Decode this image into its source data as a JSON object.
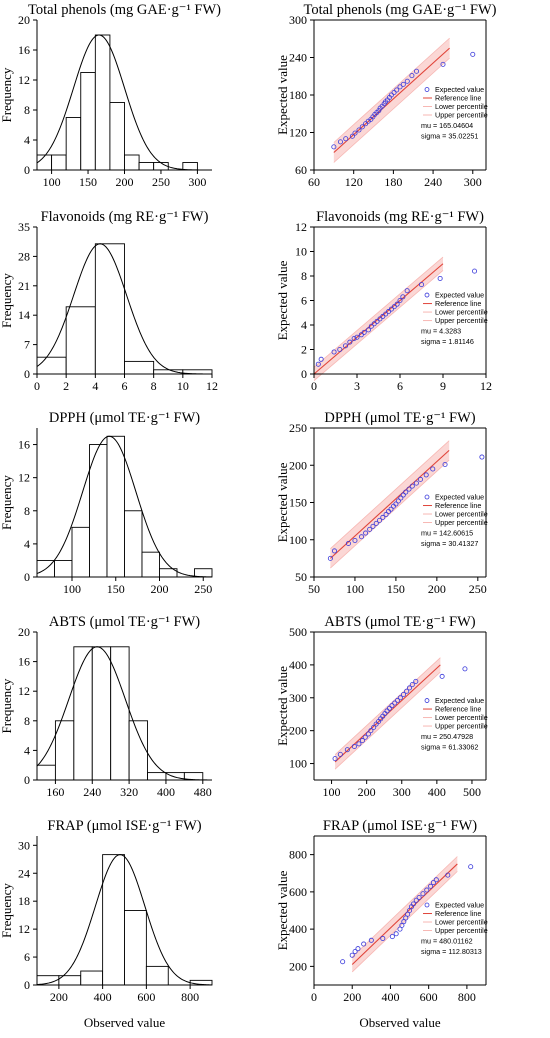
{
  "figure": {
    "hist_ylabel": "Frequency",
    "qq_ylabel": "Expected value",
    "bottom_xlabel": "Observed value",
    "colors": {
      "points": "#3a3adb",
      "reference": "#e0443a",
      "band": "#f7b7b3",
      "axes": "#000000"
    },
    "legend_labels": [
      "Expected value",
      "Reference line",
      "Lower percentile",
      "Upper percentile"
    ]
  },
  "chart_data": [
    {
      "type": "bar",
      "role": "histogram",
      "title": "Total phenols (mg GAE·g⁻¹ FW)",
      "ylabel": "Frequency",
      "xlim": [
        80,
        320
      ],
      "ylim": [
        0,
        20
      ],
      "xticks": [
        100,
        150,
        200,
        250,
        300
      ],
      "yticks": [
        0,
        4,
        8,
        12,
        16,
        20
      ],
      "bin_width": 20,
      "bins": [
        {
          "x0": 80,
          "count": 2
        },
        {
          "x0": 100,
          "count": 2
        },
        {
          "x0": 120,
          "count": 7
        },
        {
          "x0": 140,
          "count": 13
        },
        {
          "x0": 160,
          "count": 18
        },
        {
          "x0": 180,
          "count": 9
        },
        {
          "x0": 200,
          "count": 2
        },
        {
          "x0": 220,
          "count": 1
        },
        {
          "x0": 240,
          "count": 1
        },
        {
          "x0": 260,
          "count": 0
        },
        {
          "x0": 280,
          "count": 1
        }
      ],
      "normal_curve": {
        "mu": 165.04604,
        "sigma": 35.02251,
        "peak": 18
      }
    },
    {
      "type": "scatter",
      "role": "qq",
      "title": "Total phenols (mg GAE·g⁻¹ FW)",
      "ylabel": "Expected value",
      "xlim": [
        60,
        320
      ],
      "ylim": [
        60,
        300
      ],
      "xticks": [
        60,
        120,
        180,
        240,
        300
      ],
      "yticks": [
        60,
        120,
        180,
        240,
        300
      ],
      "reference_line": [
        [
          90,
          88
        ],
        [
          265,
          255
        ]
      ],
      "band_halfwidth": 16,
      "points": [
        [
          90,
          97
        ],
        [
          100,
          105
        ],
        [
          108,
          110
        ],
        [
          118,
          114
        ],
        [
          122,
          119
        ],
        [
          128,
          124
        ],
        [
          133,
          129
        ],
        [
          138,
          134
        ],
        [
          142,
          138
        ],
        [
          146,
          141
        ],
        [
          149,
          145
        ],
        [
          152,
          149
        ],
        [
          155,
          152
        ],
        [
          158,
          155
        ],
        [
          160,
          159
        ],
        [
          163,
          162
        ],
        [
          166,
          166
        ],
        [
          168,
          169
        ],
        [
          171,
          172
        ],
        [
          174,
          176
        ],
        [
          177,
          180
        ],
        [
          181,
          184
        ],
        [
          185,
          188
        ],
        [
          190,
          193
        ],
        [
          195,
          197
        ],
        [
          201,
          202
        ],
        [
          208,
          211
        ],
        [
          215,
          218
        ],
        [
          255,
          229
        ],
        [
          300,
          245
        ]
      ],
      "stats": {
        "mu": "mu = 165.04604",
        "sigma": "sigma = 35.02251"
      }
    },
    {
      "type": "bar",
      "role": "histogram",
      "title": "Flavonoids (mg RE·g⁻¹ FW)",
      "ylabel": "Frequency",
      "xlim": [
        0,
        12
      ],
      "ylim": [
        0,
        35
      ],
      "xticks": [
        0,
        2,
        4,
        6,
        8,
        10,
        12
      ],
      "yticks": [
        0,
        7,
        14,
        21,
        28,
        35
      ],
      "bin_width": 2,
      "bins": [
        {
          "x0": 0,
          "count": 4
        },
        {
          "x0": 2,
          "count": 16
        },
        {
          "x0": 4,
          "count": 31
        },
        {
          "x0": 6,
          "count": 3
        },
        {
          "x0": 8,
          "count": 1
        },
        {
          "x0": 10,
          "count": 1
        }
      ],
      "normal_curve": {
        "mu": 4.3283,
        "sigma": 1.81146,
        "peak": 31
      }
    },
    {
      "type": "scatter",
      "role": "qq",
      "title": "Flavonoids (mg RE·g⁻¹ FW)",
      "ylabel": "Expected value",
      "xlim": [
        0,
        12
      ],
      "ylim": [
        0,
        12
      ],
      "xticks": [
        0,
        3,
        6,
        9,
        12
      ],
      "yticks": [
        0,
        2,
        4,
        6,
        8,
        10,
        12
      ],
      "reference_line": [
        [
          0,
          0
        ],
        [
          9,
          9
        ]
      ],
      "band_halfwidth": 0.55,
      "points": [
        [
          0.3,
          0.8
        ],
        [
          0.5,
          1.2
        ],
        [
          1.4,
          1.8
        ],
        [
          1.8,
          2.0
        ],
        [
          2.2,
          2.3
        ],
        [
          2.5,
          2.6
        ],
        [
          2.8,
          2.9
        ],
        [
          3.0,
          3.0
        ],
        [
          3.3,
          3.2
        ],
        [
          3.5,
          3.4
        ],
        [
          3.8,
          3.6
        ],
        [
          4.0,
          3.9
        ],
        [
          4.2,
          4.1
        ],
        [
          4.4,
          4.3
        ],
        [
          4.6,
          4.5
        ],
        [
          4.8,
          4.7
        ],
        [
          5.0,
          4.9
        ],
        [
          5.2,
          5.1
        ],
        [
          5.4,
          5.3
        ],
        [
          5.6,
          5.5
        ],
        [
          5.8,
          5.7
        ],
        [
          6.0,
          6.0
        ],
        [
          6.2,
          6.3
        ],
        [
          6.5,
          6.8
        ],
        [
          7.5,
          7.3
        ],
        [
          8.8,
          7.8
        ],
        [
          11.2,
          8.4
        ]
      ],
      "stats": {
        "mu": "mu = 4.3283",
        "sigma": "sigma = 1.81146"
      }
    },
    {
      "type": "bar",
      "role": "histogram",
      "title": "DPPH (μmol TE·g⁻¹ FW)",
      "ylabel": "Frequency",
      "xlim": [
        60,
        260
      ],
      "ylim": [
        0,
        18
      ],
      "xticks": [
        100,
        150,
        200,
        250
      ],
      "yticks": [
        0,
        4,
        8,
        12,
        16
      ],
      "bin_width": 20,
      "bins": [
        {
          "x0": 60,
          "count": 2
        },
        {
          "x0": 80,
          "count": 2
        },
        {
          "x0": 100,
          "count": 6
        },
        {
          "x0": 120,
          "count": 16
        },
        {
          "x0": 140,
          "count": 17
        },
        {
          "x0": 160,
          "count": 8
        },
        {
          "x0": 180,
          "count": 3
        },
        {
          "x0": 200,
          "count": 1
        },
        {
          "x0": 220,
          "count": 0
        },
        {
          "x0": 240,
          "count": 1
        }
      ],
      "normal_curve": {
        "mu": 142.60615,
        "sigma": 30.41327,
        "peak": 17
      }
    },
    {
      "type": "scatter",
      "role": "qq",
      "title": "DPPH (μmol TE·g⁻¹ FW)",
      "ylabel": "Expected value",
      "xlim": [
        50,
        260
      ],
      "ylim": [
        50,
        250
      ],
      "xticks": [
        50,
        100,
        150,
        200,
        250
      ],
      "yticks": [
        50,
        100,
        150,
        200,
        250
      ],
      "reference_line": [
        [
          70,
          75
        ],
        [
          215,
          220
        ]
      ],
      "band_halfwidth": 13,
      "points": [
        [
          70,
          75
        ],
        [
          75,
          85
        ],
        [
          92,
          95
        ],
        [
          100,
          99
        ],
        [
          108,
          104
        ],
        [
          113,
          109
        ],
        [
          118,
          114
        ],
        [
          122,
          118
        ],
        [
          126,
          122
        ],
        [
          130,
          126
        ],
        [
          134,
          130
        ],
        [
          138,
          134
        ],
        [
          141,
          138
        ],
        [
          144,
          141
        ],
        [
          147,
          145
        ],
        [
          150,
          148
        ],
        [
          153,
          152
        ],
        [
          156,
          156
        ],
        [
          159,
          160
        ],
        [
          162,
          164
        ],
        [
          166,
          168
        ],
        [
          170,
          172
        ],
        [
          175,
          176
        ],
        [
          180,
          181
        ],
        [
          187,
          187
        ],
        [
          195,
          195
        ],
        [
          210,
          201
        ],
        [
          255,
          211
        ]
      ],
      "stats": {
        "mu": "mu = 142.60615",
        "sigma": "sigma = 30.41327"
      }
    },
    {
      "type": "bar",
      "role": "histogram",
      "title": "ABTS (μmol TE·g⁻¹ FW)",
      "ylabel": "Frequency",
      "xlim": [
        120,
        500
      ],
      "ylim": [
        0,
        20
      ],
      "xticks": [
        160,
        240,
        320,
        400,
        480
      ],
      "yticks": [
        0,
        4,
        8,
        12,
        16,
        20
      ],
      "bin_width": 40,
      "bins": [
        {
          "x0": 120,
          "count": 2
        },
        {
          "x0": 160,
          "count": 8
        },
        {
          "x0": 200,
          "count": 18
        },
        {
          "x0": 240,
          "count": 18
        },
        {
          "x0": 280,
          "count": 18
        },
        {
          "x0": 320,
          "count": 8
        },
        {
          "x0": 360,
          "count": 1
        },
        {
          "x0": 400,
          "count": 1
        },
        {
          "x0": 440,
          "count": 1
        }
      ],
      "normal_curve": {
        "mu": 250.47928,
        "sigma": 61.33062,
        "peak": 18
      }
    },
    {
      "type": "scatter",
      "role": "qq",
      "title": "ABTS (μmol TE·g⁻¹ FW)",
      "ylabel": "Expected value",
      "xlim": [
        50,
        540
      ],
      "ylim": [
        50,
        500
      ],
      "xticks": [
        100,
        200,
        300,
        400,
        500
      ],
      "yticks": [
        100,
        200,
        300,
        400,
        500
      ],
      "reference_line": [
        [
          110,
          105
        ],
        [
          410,
          400
        ]
      ],
      "band_halfwidth": 22,
      "points": [
        [
          110,
          115
        ],
        [
          125,
          128
        ],
        [
          145,
          142
        ],
        [
          165,
          152
        ],
        [
          178,
          160
        ],
        [
          188,
          170
        ],
        [
          196,
          180
        ],
        [
          205,
          190
        ],
        [
          212,
          200
        ],
        [
          220,
          210
        ],
        [
          227,
          220
        ],
        [
          234,
          228
        ],
        [
          240,
          236
        ],
        [
          246,
          244
        ],
        [
          252,
          252
        ],
        [
          258,
          260
        ],
        [
          265,
          268
        ],
        [
          272,
          276
        ],
        [
          280,
          284
        ],
        [
          288,
          292
        ],
        [
          296,
          300
        ],
        [
          305,
          310
        ],
        [
          314,
          320
        ],
        [
          322,
          330
        ],
        [
          330,
          340
        ],
        [
          340,
          350
        ],
        [
          415,
          365
        ],
        [
          480,
          388
        ]
      ],
      "stats": {
        "mu": "mu = 250.47928",
        "sigma": "sigma = 61.33062"
      }
    },
    {
      "type": "bar",
      "role": "histogram",
      "title": "FRAP (μmol ISE·g⁻¹ FW)",
      "ylabel": "Frequency",
      "xlim": [
        100,
        900
      ],
      "ylim": [
        0,
        32
      ],
      "xticks": [
        200,
        400,
        600,
        800
      ],
      "yticks": [
        0,
        6,
        12,
        18,
        24,
        30
      ],
      "bin_width": 100,
      "bins": [
        {
          "x0": 100,
          "count": 2
        },
        {
          "x0": 200,
          "count": 2
        },
        {
          "x0": 300,
          "count": 3
        },
        {
          "x0": 400,
          "count": 28
        },
        {
          "x0": 500,
          "count": 16
        },
        {
          "x0": 600,
          "count": 4
        },
        {
          "x0": 700,
          "count": 0
        },
        {
          "x0": 800,
          "count": 1
        }
      ],
      "normal_curve": {
        "mu": 480.01162,
        "sigma": 112.80313,
        "peak": 28
      }
    },
    {
      "type": "scatter",
      "role": "qq",
      "title": "FRAP (μmol ISE·g⁻¹ FW)",
      "ylabel": "Expected value",
      "xlim": [
        0,
        900
      ],
      "ylim": [
        100,
        900
      ],
      "xticks": [
        0,
        200,
        400,
        600,
        800
      ],
      "yticks": [
        200,
        400,
        600,
        800
      ],
      "reference_line": [
        [
          200,
          210
        ],
        [
          750,
          750
        ]
      ],
      "band_halfwidth": 40,
      "points": [
        [
          150,
          225
        ],
        [
          200,
          260
        ],
        [
          215,
          280
        ],
        [
          230,
          295
        ],
        [
          260,
          320
        ],
        [
          300,
          340
        ],
        [
          360,
          350
        ],
        [
          410,
          360
        ],
        [
          430,
          375
        ],
        [
          450,
          400
        ],
        [
          460,
          420
        ],
        [
          470,
          440
        ],
        [
          480,
          460
        ],
        [
          490,
          480
        ],
        [
          500,
          500
        ],
        [
          510,
          520
        ],
        [
          520,
          535
        ],
        [
          535,
          555
        ],
        [
          550,
          570
        ],
        [
          570,
          590
        ],
        [
          590,
          610
        ],
        [
          610,
          630
        ],
        [
          625,
          650
        ],
        [
          640,
          665
        ],
        [
          700,
          690
        ],
        [
          820,
          735
        ]
      ],
      "stats": {
        "mu": "mu = 480.01162",
        "sigma": "sigma = 112.80313"
      }
    }
  ]
}
